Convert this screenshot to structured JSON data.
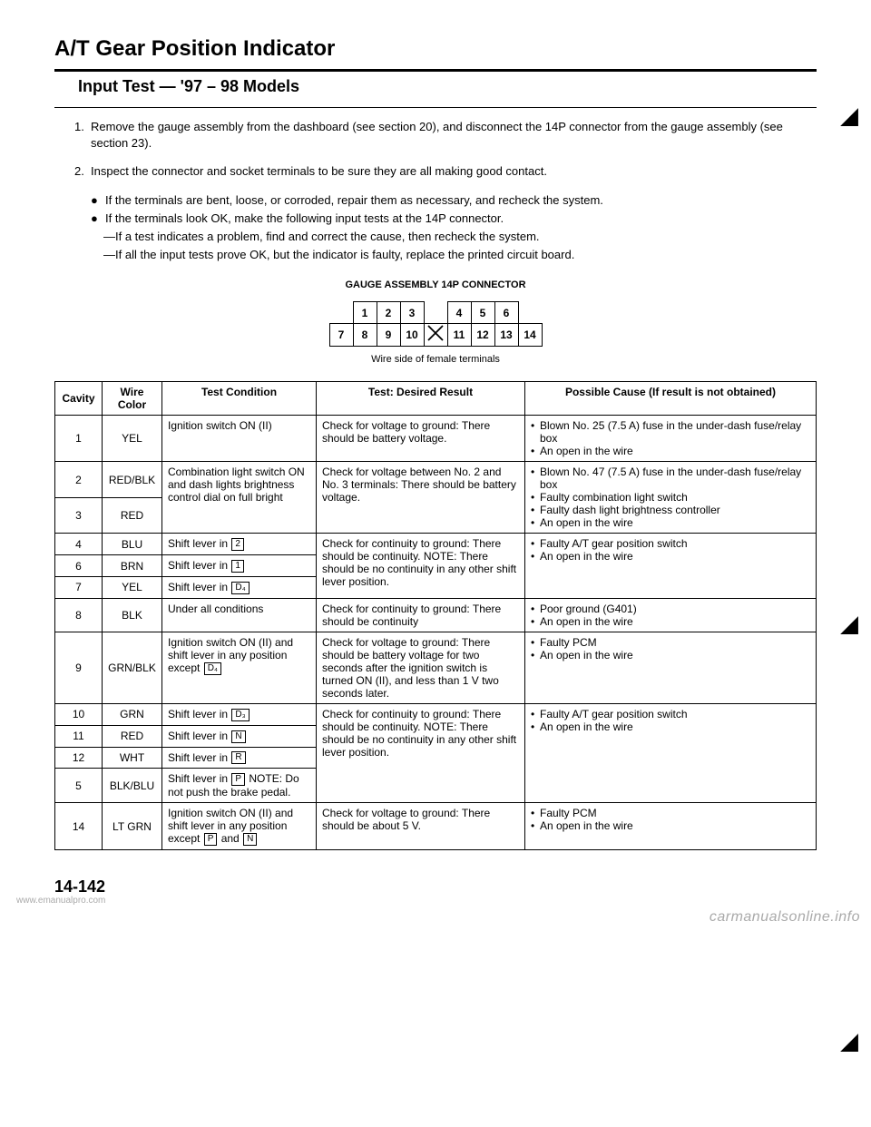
{
  "title": "A/T Gear Position Indicator",
  "section_title": "Input Test — '97 – 98 Models",
  "steps": [
    {
      "num": "1.",
      "text": "Remove the gauge assembly from the dashboard (see section 20), and disconnect the 14P connector from the gauge assembly (see section 23)."
    },
    {
      "num": "2.",
      "text": "Inspect the connector and socket terminals to be sure they are all making good contact."
    }
  ],
  "bullets": [
    {
      "mark": "●",
      "text": "If the terminals are bent, loose, or corroded, repair them as necessary, and recheck the system."
    },
    {
      "mark": "●",
      "text": "If the terminals look OK, make the following input tests at the 14P connector."
    }
  ],
  "dashes": [
    {
      "mark": "—",
      "text": "If a test indicates a problem, find and correct the cause, then recheck the system."
    },
    {
      "mark": "—",
      "text": "If all the input tests prove OK, but the indicator is faulty, replace the printed circuit board."
    }
  ],
  "connector": {
    "title": "GAUGE ASSEMBLY 14P CONNECTOR",
    "row1": [
      "1",
      "2",
      "3",
      "",
      "4",
      "5",
      "6"
    ],
    "row2": [
      "7",
      "8",
      "9",
      "10",
      "X",
      "11",
      "12",
      "13",
      "14"
    ],
    "caption": "Wire side of female terminals"
  },
  "table": {
    "headers": {
      "cavity": "Cavity",
      "wire": "Wire Color",
      "cond": "Test Condition",
      "result": "Test: Desired Result",
      "cause": "Possible Cause (If result is not obtained)"
    },
    "rows": [
      {
        "cavity": "1",
        "wire": "YEL",
        "cond": "Ignition switch ON (II)",
        "result": "Check for voltage to ground: There should be battery voltage.",
        "cause": [
          "Blown No. 25 (7.5 A) fuse in the under-dash fuse/relay box",
          "An open in the wire"
        ]
      },
      {
        "cavity": "2",
        "wire": "RED/BLK",
        "cond": "Combination light switch ON and dash lights brightness control dial on full bright",
        "result": "Check for voltage between No. 2 and No. 3 terminals: There should be battery voltage.",
        "cause": [
          "Blown No. 47 (7.5 A) fuse in the under-dash fuse/relay box",
          "Faulty combination light switch",
          "Faulty dash light brightness controller",
          "An open in the wire"
        ],
        "merge_next_cond": true,
        "merge_next_result": true,
        "merge_next_cause": true
      },
      {
        "cavity": "3",
        "wire": "RED",
        "cond": "",
        "result": "",
        "cause": []
      },
      {
        "cavity": "4",
        "wire": "BLU",
        "cond_pre": "Shift lever in ",
        "cond_box": "2",
        "result": "Check for continuity to ground: There should be continuity. NOTE: There should be no continuity in any other shift lever position.",
        "cause": [
          "Faulty A/T gear position switch",
          "An open in the wire"
        ],
        "merge_next_result": true,
        "merge_next_cause": true
      },
      {
        "cavity": "6",
        "wire": "BRN",
        "cond_pre": "Shift lever in ",
        "cond_box": "1",
        "merge_next_result": true,
        "merge_next_cause": true
      },
      {
        "cavity": "7",
        "wire": "YEL",
        "cond_pre": "Shift lever in ",
        "cond_box": "D₄"
      },
      {
        "cavity": "8",
        "wire": "BLK",
        "cond": "Under all conditions",
        "result": "Check for continuity to ground: There should be continuity",
        "cause": [
          "Poor ground (G401)",
          "An open in the wire"
        ]
      },
      {
        "cavity": "9",
        "wire": "GRN/BLK",
        "cond_pre": "Ignition switch ON (II) and shift lever in any position except ",
        "cond_box": "D₄",
        "result": "Check for voltage to ground: There should be battery voltage for two seconds after the ignition switch is turned ON (II), and less than 1 V two seconds later.",
        "cause": [
          "Faulty PCM",
          "An open in the wire"
        ]
      },
      {
        "cavity": "10",
        "wire": "GRN",
        "cond_pre": "Shift lever in ",
        "cond_box": "D₃",
        "result": "Check for continuity to ground: There should be continuity. NOTE: There should be no continuity in any other shift lever position.",
        "cause": [
          "Faulty A/T gear position switch",
          "An open in the wire"
        ],
        "merge_next_result": true,
        "merge_next_cause": true
      },
      {
        "cavity": "11",
        "wire": "RED",
        "cond_pre": "Shift lever in ",
        "cond_box": "N",
        "merge_next_result": true,
        "merge_next_cause": true
      },
      {
        "cavity": "12",
        "wire": "WHT",
        "cond_pre": "Shift lever in ",
        "cond_box": "R",
        "merge_next_result": true,
        "merge_next_cause": true
      },
      {
        "cavity": "5",
        "wire": "BLK/BLU",
        "cond_pre": "Shift lever in ",
        "cond_box": "P",
        "cond_post": " NOTE: Do not push the brake pedal."
      },
      {
        "cavity": "14",
        "wire": "LT GRN",
        "cond_pre": "Ignition switch ON (II) and shift lever in any position except ",
        "cond_box": "P",
        "cond_post": " and ",
        "cond_box2": "N",
        "result": "Check for voltage to ground: There should be about 5 V.",
        "cause": [
          "Faulty PCM",
          "An open in the wire"
        ]
      }
    ]
  },
  "page_number": "14-142",
  "watermark_right": "carmanualsonline.info",
  "watermark_left": "www.emanualpro.com"
}
